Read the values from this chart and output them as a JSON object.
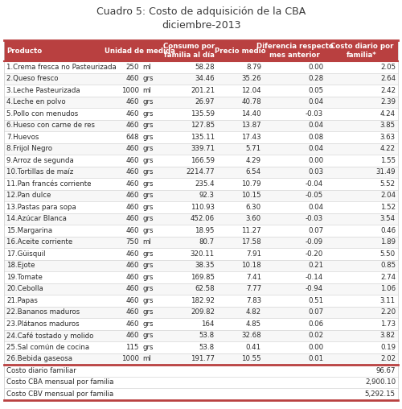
{
  "title": "Cuadro 5: Costo de adquisición de la CBA\ndiciembre-2013",
  "rows": [
    [
      "1.Crema fresca no Pasteurizada",
      "250",
      "ml",
      "58.28",
      "8.79",
      "0.00",
      "2.05"
    ],
    [
      "2.Queso fresco",
      "460",
      "grs",
      "34.46",
      "35.26",
      "0.28",
      "2.64"
    ],
    [
      "3.Leche Pasteurizada",
      "1000",
      "ml",
      "201.21",
      "12.04",
      "0.05",
      "2.42"
    ],
    [
      "4.Leche en polvo",
      "460",
      "grs",
      "26.97",
      "40.78",
      "0.04",
      "2.39"
    ],
    [
      "5.Pollo con menudos",
      "460",
      "grs",
      "135.59",
      "14.40",
      "-0.03",
      "4.24"
    ],
    [
      "6.Hueso con carne de res",
      "460",
      "grs",
      "127.85",
      "13.87",
      "0.04",
      "3.85"
    ],
    [
      "7.Huevos",
      "648",
      "grs",
      "135.11",
      "17.43",
      "0.08",
      "3.63"
    ],
    [
      "8.Frijol Negro",
      "460",
      "grs",
      "339.71",
      "5.71",
      "0.04",
      "4.22"
    ],
    [
      "9.Arroz de segunda",
      "460",
      "grs",
      "166.59",
      "4.29",
      "0.00",
      "1.55"
    ],
    [
      "10.Tortillas de maíz",
      "460",
      "grs",
      "2214.77",
      "6.54",
      "0.03",
      "31.49"
    ],
    [
      "11.Pan francés corriente",
      "460",
      "grs",
      "235.4",
      "10.79",
      "-0.04",
      "5.52"
    ],
    [
      "12.Pan dulce",
      "460",
      "grs",
      "92.3",
      "10.15",
      "-0.05",
      "2.04"
    ],
    [
      "13.Pastas para sopa",
      "460",
      "grs",
      "110.93",
      "6.30",
      "0.04",
      "1.52"
    ],
    [
      "14.Azúcar Blanca",
      "460",
      "grs",
      "452.06",
      "3.60",
      "-0.03",
      "3.54"
    ],
    [
      "15.Margarina",
      "460",
      "grs",
      "18.95",
      "11.27",
      "0.07",
      "0.46"
    ],
    [
      "16.Aceite corriente",
      "750",
      "ml",
      "80.7",
      "17.58",
      "-0.09",
      "1.89"
    ],
    [
      "17.Güisquil",
      "460",
      "grs",
      "320.11",
      "7.91",
      "-0.20",
      "5.50"
    ],
    [
      "18.Ejote",
      "460",
      "grs",
      "38.35",
      "10.18",
      "0.21",
      "0.85"
    ],
    [
      "19.Tomate",
      "460",
      "grs",
      "169.85",
      "7.41",
      "-0.14",
      "2.74"
    ],
    [
      "20.Cebolla",
      "460",
      "grs",
      "62.58",
      "7.77",
      "-0.94",
      "1.06"
    ],
    [
      "21.Papas",
      "460",
      "grs",
      "182.92",
      "7.83",
      "0.51",
      "3.11"
    ],
    [
      "22.Bananos maduros",
      "460",
      "grs",
      "209.82",
      "4.82",
      "0.07",
      "2.20"
    ],
    [
      "23.Plátanos maduros",
      "460",
      "grs",
      "164",
      "4.85",
      "0.06",
      "1.73"
    ],
    [
      "24.Café tostado y molido",
      "460",
      "grs",
      "53.8",
      "32.68",
      "0.02",
      "3.82"
    ],
    [
      "25.Sal común de cocina",
      "115",
      "grs",
      "53.8",
      "0.41",
      "0.00",
      "0.19"
    ],
    [
      "26.Bebida gaseosa",
      "1000",
      "ml",
      "191.77",
      "10.55",
      "0.01",
      "2.02"
    ]
  ],
  "summary": [
    [
      "Costo diario familiar",
      "96.67"
    ],
    [
      "Costo CBA mensual por familia",
      "2,900.10"
    ],
    [
      "Costo CBV mensual por familia",
      "5,292.15"
    ]
  ],
  "header_bg": "#b94040",
  "header_fg": "#ffffff",
  "title_color": "#3a3a3a",
  "border_color": "#b94040",
  "text_color": "#2a2a2a",
  "sep_color": "#cccccc",
  "font_size": 6.2,
  "header_font_size": 6.2,
  "title_font_size": 9.0,
  "col_sep_color": "#aaaaaa"
}
